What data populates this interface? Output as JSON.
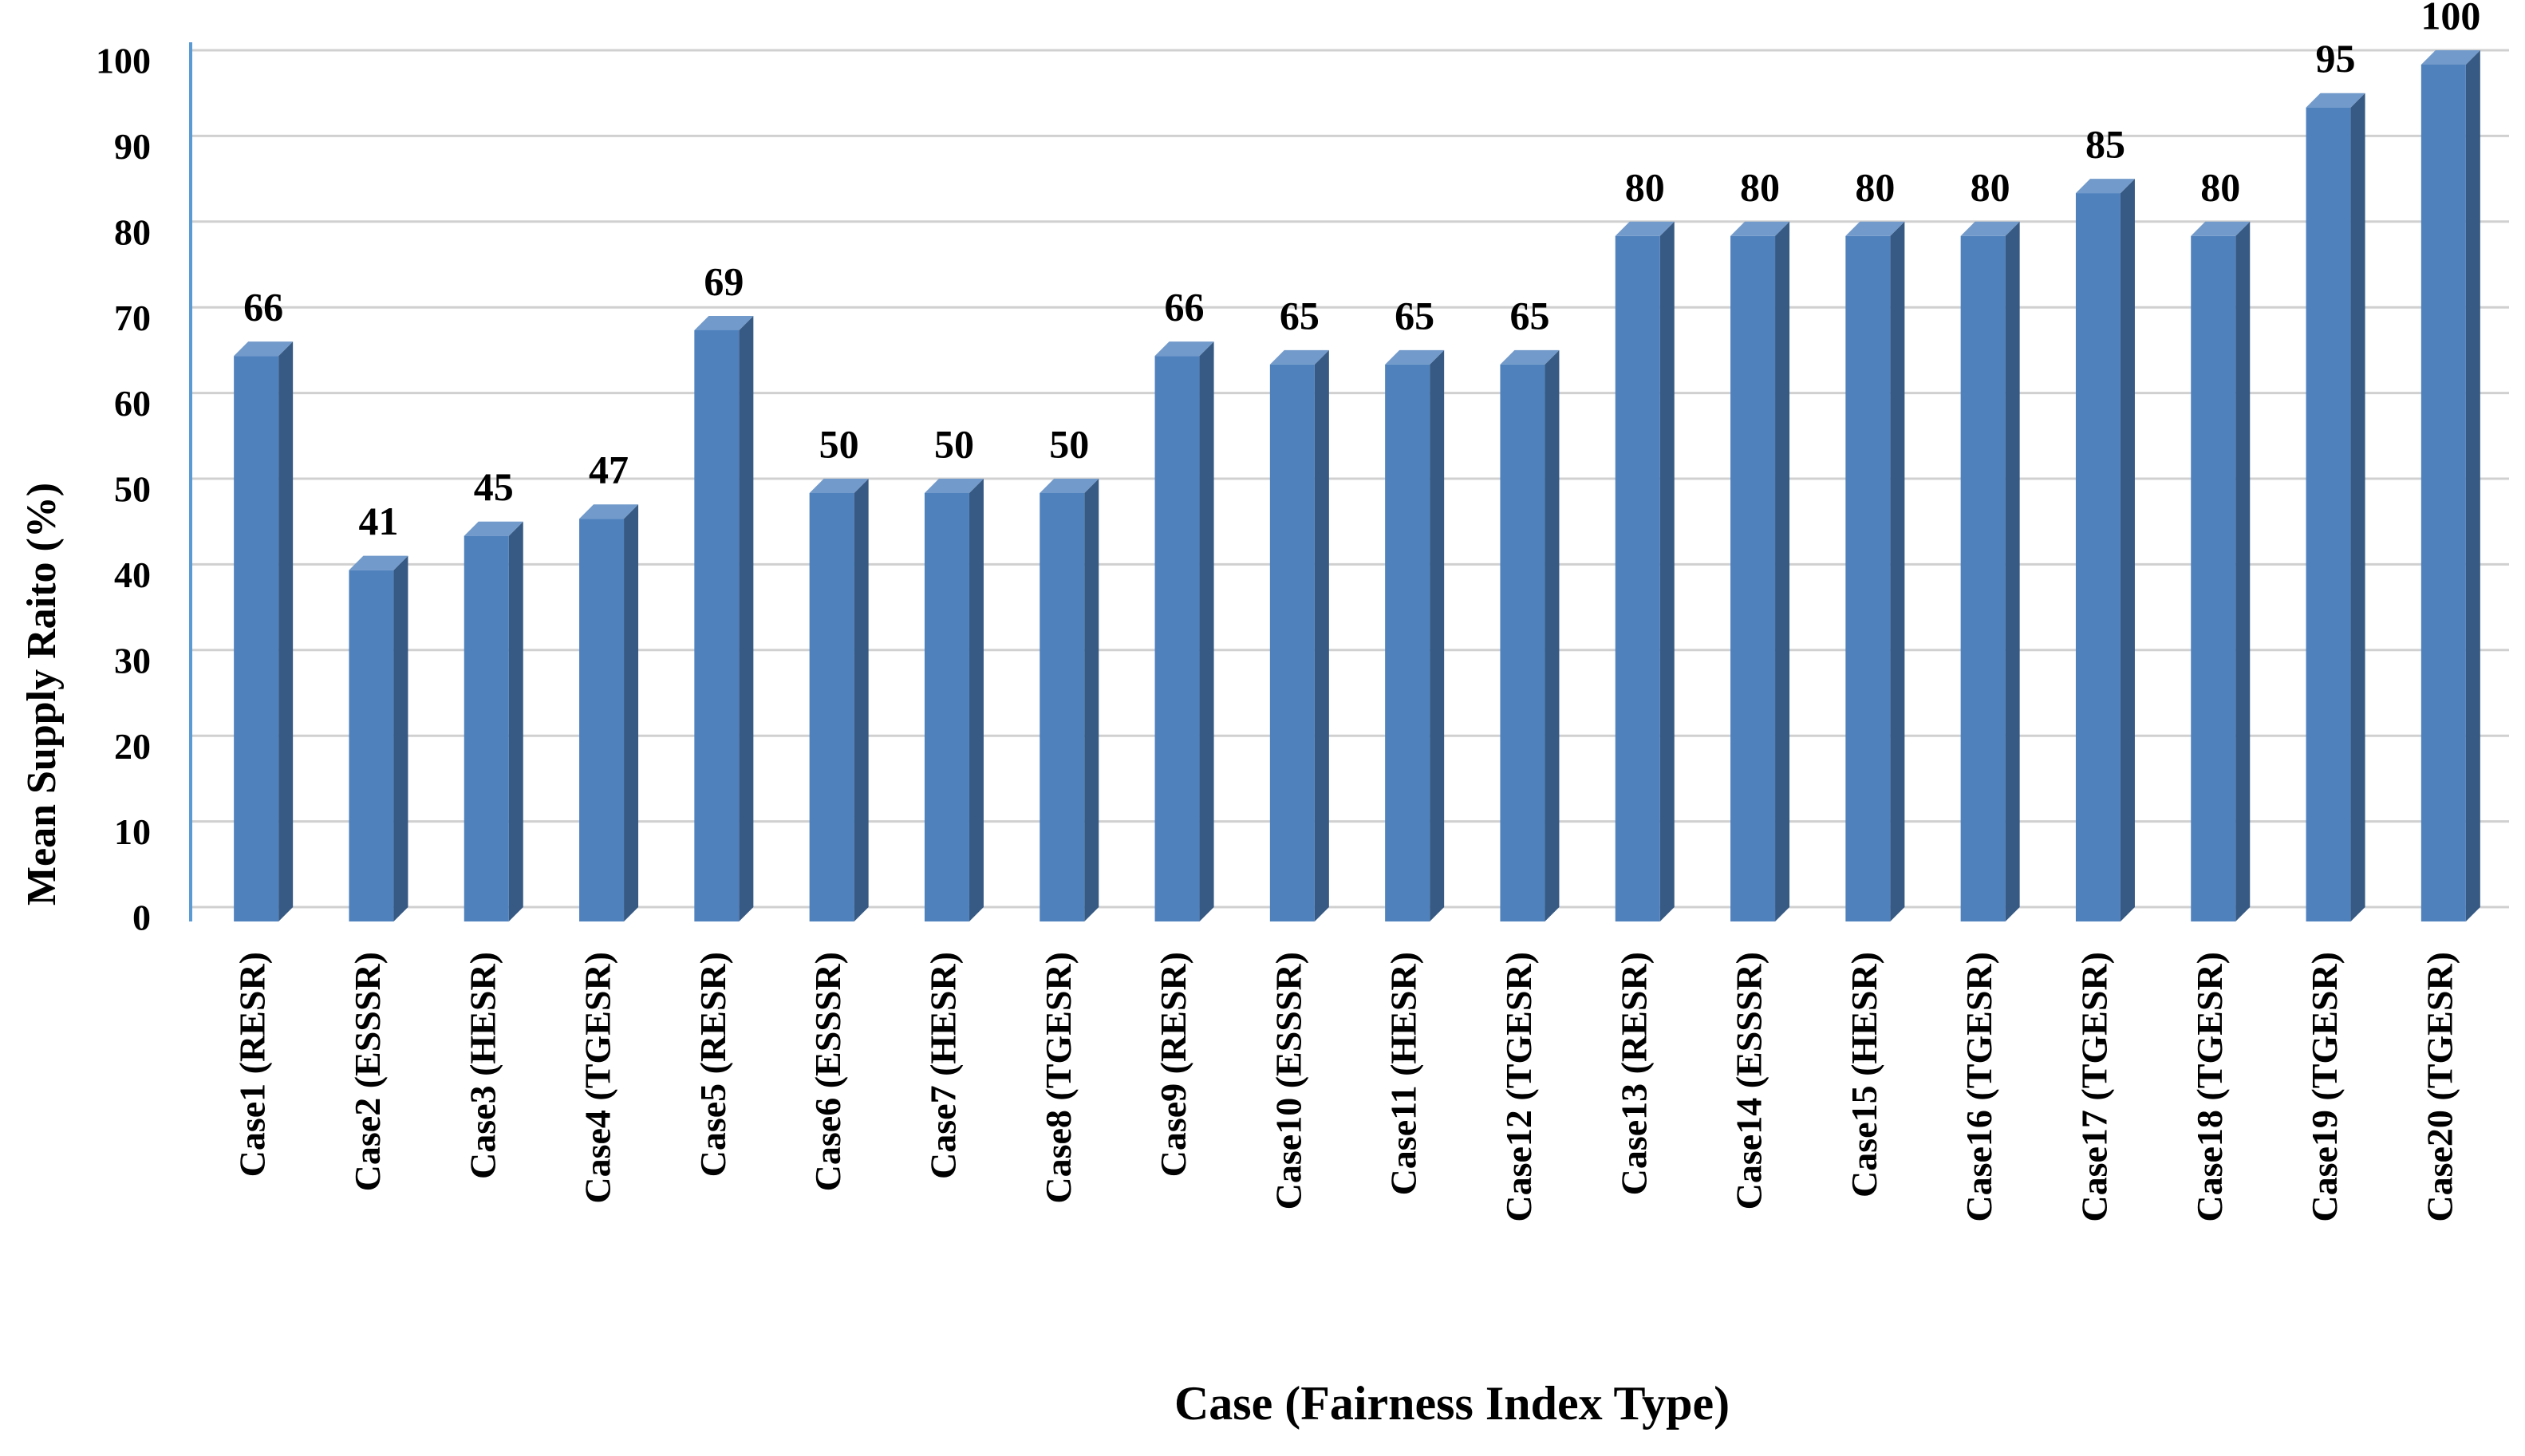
{
  "chart_data": {
    "type": "bar3d",
    "x_label": "Case (Fairness Index Type)",
    "y_label": "Mean Supply Raito (%)",
    "categories": [
      "Case1 (RESR)",
      "Case2 (ESSSR)",
      "Case3 (HESR)",
      "Case4 (TGESR)",
      "Case5 (RESR)",
      "Case6 (ESSSR)",
      "Case7 (HESR)",
      "Case8 (TGESR)",
      "Case9 (RESR)",
      "Case10 (ESSSR)",
      "Case11 (HESR)",
      "Case12 (TGESR)",
      "Case13 (RESR)",
      "Case14 (ESSSR)",
      "Case15 (HESR)",
      "Case16 (TGESR)",
      "Case17 (TGESR)",
      "Case18 (TGESR)",
      "Case19 (TGESR)",
      "Case20 (TGESR)"
    ],
    "values": [
      66,
      41,
      45,
      47,
      69,
      50,
      50,
      50,
      66,
      65,
      65,
      65,
      80,
      80,
      80,
      80,
      85,
      80,
      95,
      100
    ],
    "color": "#4f81bd",
    "ylim": [
      0,
      100
    ],
    "yticks": [
      0,
      10,
      20,
      30,
      40,
      50,
      60,
      70,
      80,
      90,
      100
    ],
    "grid": true
  }
}
